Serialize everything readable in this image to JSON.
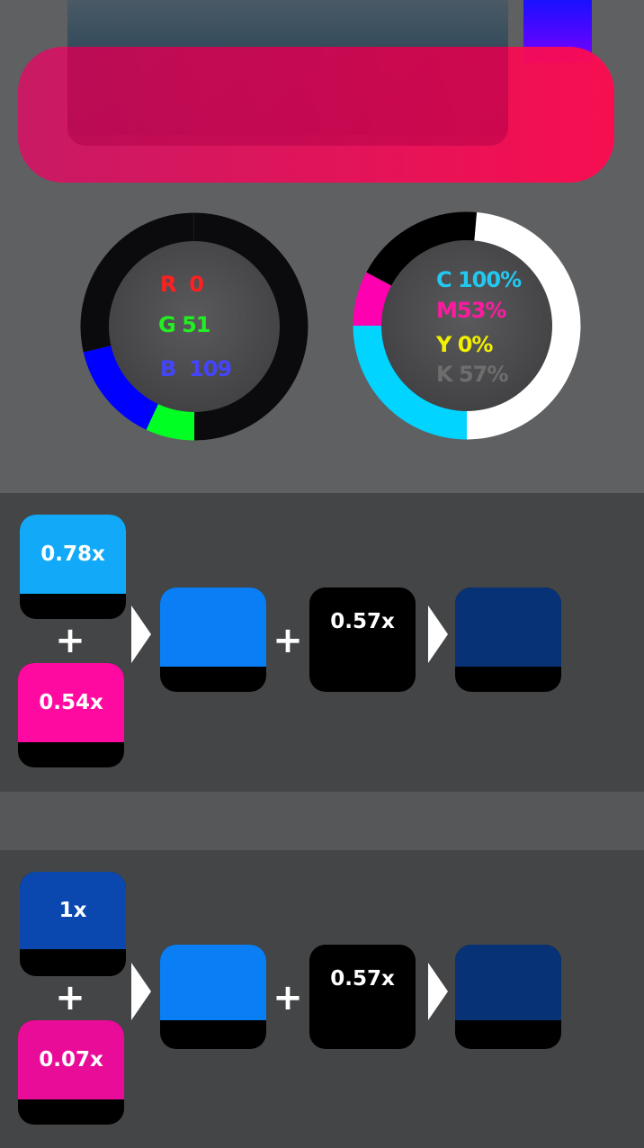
{
  "rgb": {
    "r_label": "R",
    "r": "0",
    "g_label": "G",
    "g": "51",
    "b_label": "B",
    "b": "109",
    "colors": {
      "r": "#ff2020",
      "g": "#22ee22",
      "b": "#4444ff"
    }
  },
  "cmyk": {
    "c": "C 100%",
    "m": "M53%",
    "y": "Y 0%",
    "k": "K 57%",
    "colors": {
      "c": "#22c8f0",
      "m": "#ff1aa0",
      "y": "#f2f000",
      "k": "#6e6e6e"
    }
  },
  "row1": {
    "cyan": "0.78x",
    "magenta": "0.54x",
    "plus": "+",
    "black": "0.57x",
    "colors": {
      "cyan": "#12aaf8",
      "magenta": "#ff0aa0",
      "mix": "#0a7ff5",
      "black": "#000000",
      "result": "#073275"
    }
  },
  "row2": {
    "blue": "1x",
    "magenta": "0.07x",
    "plus": "+",
    "black": "0.57x",
    "colors": {
      "blue": "#0a48b0",
      "magenta": "#e80c98",
      "mix": "#0a7ff5",
      "black": "#000000",
      "result": "#073275"
    }
  }
}
